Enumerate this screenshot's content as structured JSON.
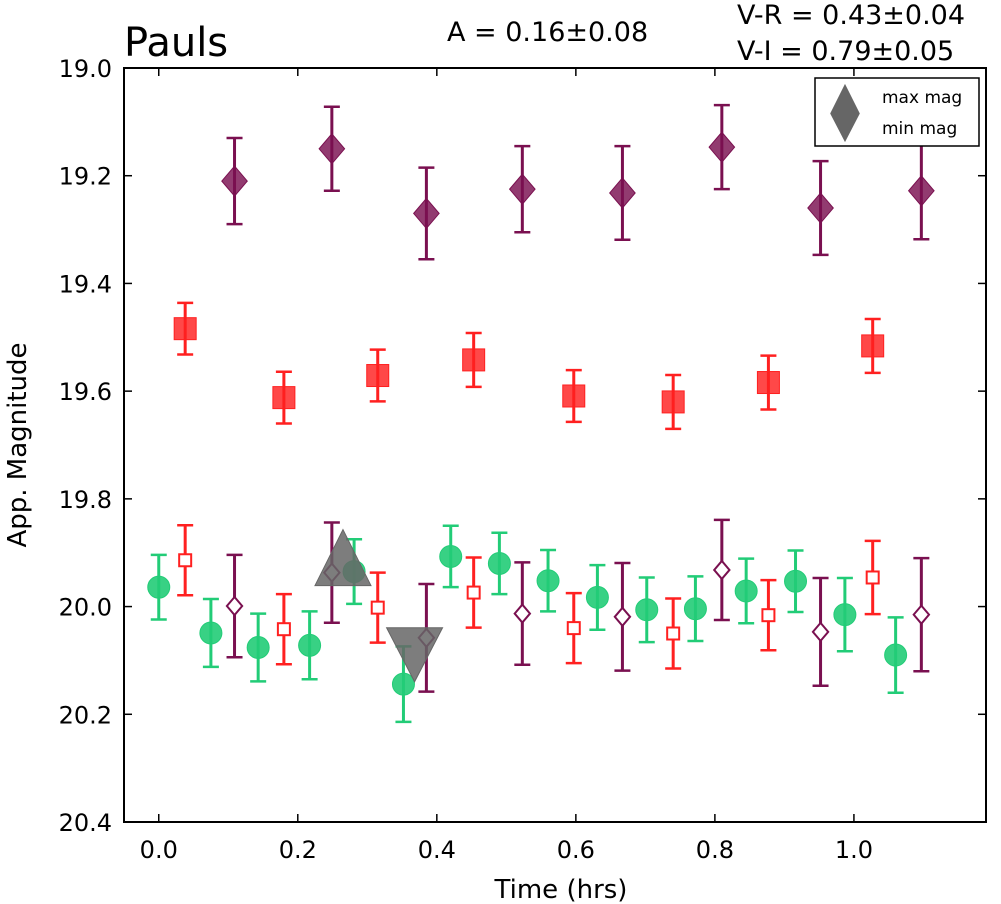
{
  "chart_data": {
    "type": "scatter",
    "title": "Pauls",
    "annotations": {
      "amplitude": "A  = 0.16±0.08",
      "vr": "V-R = 0.43±0.04",
      "vi": "V-I  = 0.79±0.05"
    },
    "xlabel": "Time (hrs)",
    "ylabel": "App. Magnitude",
    "xlim": [
      -0.05,
      1.19
    ],
    "ylim": [
      20.4,
      19.0
    ],
    "y_inverted": true,
    "grid": false,
    "legend_position": "top-right",
    "x_ticks": [
      0.0,
      0.2,
      0.4,
      0.6,
      0.8,
      1.0
    ],
    "x_tick_labels": [
      "0.0",
      "0.2",
      "0.4",
      "0.6",
      "0.8",
      "1.0"
    ],
    "y_ticks": [
      19.0,
      19.2,
      19.4,
      19.6,
      19.8,
      20.0,
      20.2,
      20.4
    ],
    "y_tick_labels": [
      "19.0",
      "19.2",
      "19.4",
      "19.6",
      "19.8",
      "20.0",
      "20.2",
      "20.4"
    ],
    "legend": [
      {
        "label": "max mag",
        "marker": "triangle-up",
        "color": "#666666"
      },
      {
        "label": "min mag",
        "marker": "triangle-down",
        "color": "#666666"
      }
    ],
    "colors": {
      "purple": "#7a1050",
      "red": "#ff2020",
      "green": "#22cc77",
      "gray": "#666666"
    },
    "series": [
      {
        "marker": "diamond",
        "fill": "filled",
        "color": "purple",
        "points": [
          {
            "x": 0.109,
            "y": 19.21,
            "err": 0.08
          },
          {
            "x": 0.249,
            "y": 19.15,
            "err": 0.078
          },
          {
            "x": 0.385,
            "y": 19.27,
            "err": 0.085
          },
          {
            "x": 0.523,
            "y": 19.225,
            "err": 0.08
          },
          {
            "x": 0.667,
            "y": 19.232,
            "err": 0.087
          },
          {
            "x": 0.81,
            "y": 19.147,
            "err": 0.078
          },
          {
            "x": 0.952,
            "y": 19.26,
            "err": 0.087
          },
          {
            "x": 1.097,
            "y": 19.228,
            "err": 0.09
          }
        ]
      },
      {
        "marker": "square",
        "fill": "filled",
        "color": "red",
        "points": [
          {
            "x": 0.038,
            "y": 19.484,
            "err": 0.048
          },
          {
            "x": 0.18,
            "y": 19.612,
            "err": 0.048
          },
          {
            "x": 0.315,
            "y": 19.571,
            "err": 0.048
          },
          {
            "x": 0.453,
            "y": 19.542,
            "err": 0.05
          },
          {
            "x": 0.597,
            "y": 19.609,
            "err": 0.048
          },
          {
            "x": 0.74,
            "y": 19.62,
            "err": 0.05
          },
          {
            "x": 0.877,
            "y": 19.584,
            "err": 0.05
          },
          {
            "x": 1.027,
            "y": 19.516,
            "err": 0.05
          }
        ]
      },
      {
        "marker": "circle",
        "fill": "filled",
        "color": "green",
        "points": [
          {
            "x": 0.0,
            "y": 19.964,
            "err": 0.06
          },
          {
            "x": 0.075,
            "y": 20.049,
            "err": 0.063
          },
          {
            "x": 0.143,
            "y": 20.076,
            "err": 0.063
          },
          {
            "x": 0.217,
            "y": 20.072,
            "err": 0.063
          },
          {
            "x": 0.281,
            "y": 19.935,
            "err": 0.06
          },
          {
            "x": 0.352,
            "y": 20.144,
            "err": 0.07
          },
          {
            "x": 0.42,
            "y": 19.907,
            "err": 0.057
          },
          {
            "x": 0.49,
            "y": 19.92,
            "err": 0.057
          },
          {
            "x": 0.56,
            "y": 19.952,
            "err": 0.057
          },
          {
            "x": 0.631,
            "y": 19.983,
            "err": 0.06
          },
          {
            "x": 0.702,
            "y": 20.006,
            "err": 0.06
          },
          {
            "x": 0.772,
            "y": 20.004,
            "err": 0.06
          },
          {
            "x": 0.845,
            "y": 19.971,
            "err": 0.06
          },
          {
            "x": 0.916,
            "y": 19.953,
            "err": 0.057
          },
          {
            "x": 0.987,
            "y": 20.015,
            "err": 0.068
          },
          {
            "x": 1.06,
            "y": 20.09,
            "err": 0.07
          }
        ]
      },
      {
        "marker": "square",
        "fill": "open",
        "color": "red",
        "points": [
          {
            "x": 0.038,
            "y": 19.914,
            "err": 0.065
          },
          {
            "x": 0.18,
            "y": 20.042,
            "err": 0.065
          },
          {
            "x": 0.315,
            "y": 20.002,
            "err": 0.065
          },
          {
            "x": 0.453,
            "y": 19.974,
            "err": 0.065
          },
          {
            "x": 0.597,
            "y": 20.04,
            "err": 0.065
          },
          {
            "x": 0.74,
            "y": 20.05,
            "err": 0.065
          },
          {
            "x": 0.877,
            "y": 20.016,
            "err": 0.065
          },
          {
            "x": 1.027,
            "y": 19.946,
            "err": 0.068
          }
        ]
      },
      {
        "marker": "diamond",
        "fill": "open",
        "color": "purple",
        "points": [
          {
            "x": 0.109,
            "y": 19.999,
            "err": 0.095
          },
          {
            "x": 0.249,
            "y": 19.937,
            "err": 0.093
          },
          {
            "x": 0.385,
            "y": 20.058,
            "err": 0.1
          },
          {
            "x": 0.523,
            "y": 20.013,
            "err": 0.095
          },
          {
            "x": 0.667,
            "y": 20.019,
            "err": 0.1
          },
          {
            "x": 0.81,
            "y": 19.932,
            "err": 0.093
          },
          {
            "x": 0.952,
            "y": 20.047,
            "err": 0.1
          },
          {
            "x": 1.097,
            "y": 20.015,
            "err": 0.105
          }
        ]
      },
      {
        "marker": "triangle-up",
        "fill": "filled",
        "color": "gray",
        "points": [
          {
            "x": 0.265,
            "y": 19.935
          }
        ]
      },
      {
        "marker": "triangle-down",
        "fill": "filled",
        "color": "gray",
        "points": [
          {
            "x": 0.368,
            "y": 20.095
          }
        ]
      }
    ]
  }
}
